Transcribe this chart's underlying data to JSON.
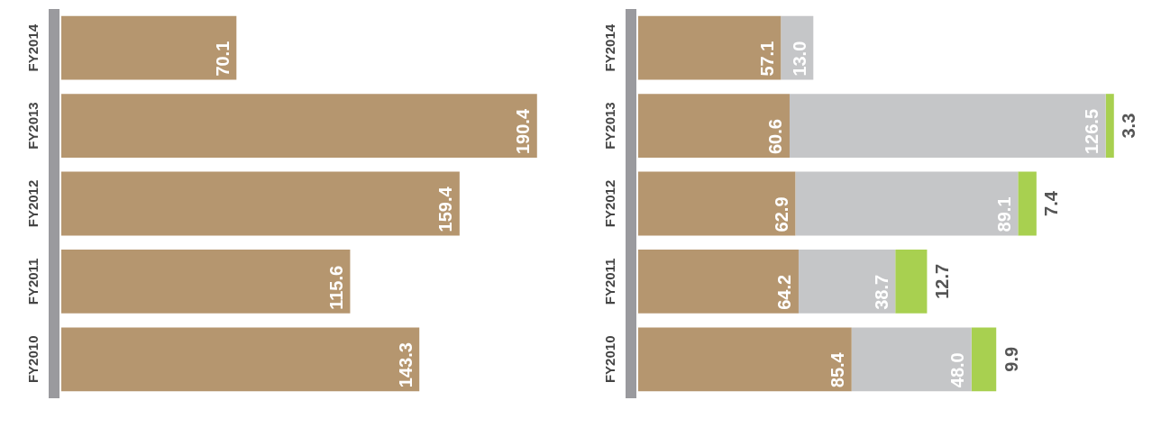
{
  "chart_data": [
    {
      "type": "bar",
      "orientation": "horizontal",
      "categories": [
        "FY2014",
        "FY2013",
        "FY2012",
        "FY2011",
        "FY2010"
      ],
      "series": [
        {
          "color": "#b5966f",
          "values": [
            70.1,
            190.4,
            159.4,
            115.6,
            143.3
          ]
        }
      ],
      "data_labels": true,
      "legend": false
    },
    {
      "type": "bar",
      "orientation": "horizontal",
      "stacked": true,
      "categories": [
        "FY2014",
        "FY2013",
        "FY2012",
        "FY2011",
        "FY2010"
      ],
      "series": [
        {
          "color": "#b5966f",
          "values": [
            57.1,
            60.6,
            62.9,
            64.2,
            85.4
          ]
        },
        {
          "color": "#c5c6c8",
          "values": [
            13.0,
            126.5,
            89.1,
            38.7,
            48.0
          ],
          "value_labels": [
            "13.0",
            "126.5",
            "89.1",
            "38.7",
            "48.0"
          ]
        },
        {
          "color": "#a8d050",
          "values": [
            null,
            3.3,
            7.4,
            12.7,
            9.9
          ]
        }
      ],
      "data_labels": true,
      "legend": false
    }
  ]
}
